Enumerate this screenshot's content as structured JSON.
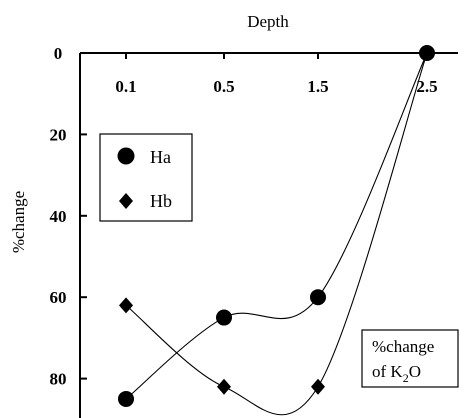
{
  "chart_data": {
    "type": "line",
    "xlabel": "Depth",
    "ylabel": "%change",
    "x_categories": [
      "0.1",
      "0.5",
      "1.5",
      "2.5"
    ],
    "y_ticks": [
      0,
      20,
      40,
      60,
      80
    ],
    "ylim": [
      0,
      90
    ],
    "y_inverted": true,
    "x_axis_position": "top",
    "legend_position": "left",
    "series": [
      {
        "name": "Ha",
        "marker": "circle",
        "values": [
          85,
          65,
          60,
          0
        ]
      },
      {
        "name": "Hb",
        "marker": "diamond",
        "values": [
          62,
          82,
          82,
          0
        ]
      }
    ],
    "annotation": {
      "line1": "%change",
      "line2_main": "of K",
      "line2_sub": "2",
      "line2_end": "O"
    },
    "colors": {
      "ink": "#000000",
      "background": "#ffffff"
    }
  }
}
